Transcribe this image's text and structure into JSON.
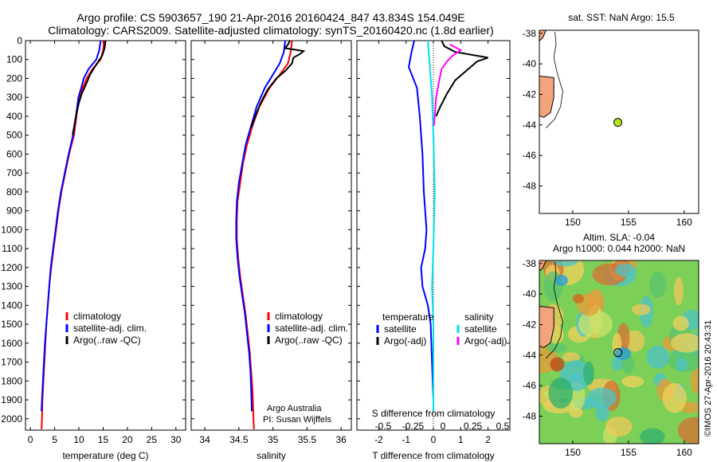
{
  "header": {
    "line1": "Argo profile: CS 5903657_190 21-Apr-2016 20160424_847 43.834S 154.049E",
    "line2": "Climatology: CARS2009. Satellite-adjusted climatology: synTS_20160420.nc (1.8d earlier)"
  },
  "colors": {
    "climatology": "#ff0000",
    "satellite": "#0000ff",
    "argo": "#000000",
    "sat_salinity": "#00e0e8",
    "argo_salinity": "#ff00ff",
    "land": "#f3a47a",
    "marker": "#b5e61d"
  },
  "credits": {
    "watermark": "©IMOS 27-Apr-2016 20:43:31",
    "institution": "Argo Australia",
    "pi": "PI: Susan Wijffels"
  },
  "map_top": {
    "title": "sat. SST: NaN Argo: 15.5",
    "xticks": [
      150,
      155,
      160
    ],
    "yticks": [
      -38,
      -40,
      -42,
      -44,
      -46,
      -48
    ],
    "xlim": [
      147,
      161.3
    ],
    "ylim": [
      -49.8,
      -37.8
    ],
    "argo_position": {
      "lon": 154.049,
      "lat": -43.834
    }
  },
  "map_bottom": {
    "title1": "Altim. SLA: -0.04",
    "title2": "Argo h1000: 0.044 h2000: NaN",
    "xticks": [
      150,
      155,
      160
    ],
    "yticks": [
      -38,
      -40,
      -42,
      -44,
      -46,
      -48
    ],
    "xlim": [
      147,
      161.3
    ],
    "ylim": [
      -49.8,
      -37.8
    ],
    "argo_position": {
      "lon": 154.049,
      "lat": -43.834
    }
  },
  "chart_data": [
    {
      "type": "line",
      "panel": "temperature",
      "xlabel": "temperature (deg C)",
      "ylabel": "",
      "xlim": [
        -1,
        32
      ],
      "ylim": [
        2060,
        0
      ],
      "xticks": [
        0,
        5,
        10,
        15,
        20,
        25,
        30
      ],
      "yticks": [
        0,
        100,
        200,
        300,
        400,
        500,
        600,
        700,
        800,
        900,
        1000,
        1100,
        1200,
        1300,
        1400,
        1500,
        1600,
        1700,
        1800,
        1900,
        2000
      ],
      "legend": [
        "climatology",
        "satellite-adj. clim.",
        "Argo(..raw -QC)"
      ],
      "series": [
        {
          "name": "climatology",
          "color": "#ff0000",
          "points": [
            [
              15.2,
              0
            ],
            [
              15.0,
              50
            ],
            [
              14.5,
              100
            ],
            [
              12.8,
              150
            ],
            [
              11.6,
              200
            ],
            [
              10.8,
              250
            ],
            [
              10.0,
              300
            ],
            [
              9.5,
              400
            ],
            [
              9.0,
              500
            ],
            [
              8.0,
              600
            ],
            [
              7.2,
              700
            ],
            [
              6.4,
              800
            ],
            [
              5.8,
              900
            ],
            [
              5.3,
              1000
            ],
            [
              4.8,
              1100
            ],
            [
              4.3,
              1200
            ],
            [
              3.9,
              1300
            ],
            [
              3.6,
              1400
            ],
            [
              3.3,
              1500
            ],
            [
              3.1,
              1600
            ],
            [
              2.9,
              1700
            ],
            [
              2.7,
              1800
            ],
            [
              2.5,
              1900
            ],
            [
              2.4,
              2000
            ],
            [
              2.3,
              2055
            ]
          ]
        },
        {
          "name": "satellite-adj. clim.",
          "color": "#0000ff",
          "points": [
            [
              14.5,
              0
            ],
            [
              14.2,
              50
            ],
            [
              13.6,
              100
            ],
            [
              12.0,
              150
            ],
            [
              11.0,
              200
            ],
            [
              10.5,
              250
            ],
            [
              9.9,
              300
            ],
            [
              9.4,
              400
            ],
            [
              8.8,
              500
            ],
            [
              7.9,
              600
            ],
            [
              7.1,
              700
            ],
            [
              6.3,
              800
            ],
            [
              5.7,
              900
            ],
            [
              5.2,
              1000
            ],
            [
              4.7,
              1100
            ],
            [
              4.2,
              1200
            ],
            [
              3.9,
              1300
            ],
            [
              3.6,
              1400
            ],
            [
              3.3,
              1500
            ],
            [
              3.0,
              1600
            ],
            [
              2.8,
              1700
            ],
            [
              2.6,
              1800
            ],
            [
              2.4,
              1900
            ],
            [
              2.3,
              1960
            ]
          ]
        },
        {
          "name": "Argo(..raw -QC)",
          "color": "#000000",
          "points": [
            [
              15.5,
              0
            ],
            [
              15.3,
              40
            ],
            [
              14.8,
              80
            ],
            [
              13.5,
              130
            ],
            [
              12.3,
              180
            ],
            [
              11.5,
              230
            ],
            [
              10.6,
              280
            ],
            [
              10.0,
              330
            ],
            [
              9.4,
              400
            ],
            [
              8.7,
              500
            ]
          ]
        }
      ]
    },
    {
      "type": "line",
      "panel": "salinity",
      "xlabel": "salinity",
      "ylabel": "",
      "xlim": [
        33.8,
        36.15
      ],
      "ylim": [
        2060,
        0
      ],
      "xticks": [
        34,
        34.5,
        35,
        35.5,
        36
      ],
      "legend": [
        "climatology",
        "satellite-adj. clim.",
        "Argo(..raw -QC)"
      ],
      "series": [
        {
          "name": "climatology",
          "color": "#ff0000",
          "points": [
            [
              35.28,
              0
            ],
            [
              35.26,
              60
            ],
            [
              35.22,
              120
            ],
            [
              35.1,
              180
            ],
            [
              34.95,
              250
            ],
            [
              34.8,
              350
            ],
            [
              34.7,
              450
            ],
            [
              34.62,
              550
            ],
            [
              34.56,
              650
            ],
            [
              34.52,
              750
            ],
            [
              34.48,
              850
            ],
            [
              34.47,
              950
            ],
            [
              34.47,
              1050
            ],
            [
              34.49,
              1150
            ],
            [
              34.52,
              1250
            ],
            [
              34.56,
              1350
            ],
            [
              34.6,
              1450
            ],
            [
              34.63,
              1550
            ],
            [
              34.66,
              1650
            ],
            [
              34.68,
              1750
            ],
            [
              34.7,
              1850
            ],
            [
              34.71,
              1950
            ],
            [
              34.72,
              2055
            ]
          ]
        },
        {
          "name": "satellite-adj. clim.",
          "color": "#0000ff",
          "points": [
            [
              35.18,
              0
            ],
            [
              35.16,
              60
            ],
            [
              35.1,
              120
            ],
            [
              35.0,
              180
            ],
            [
              34.88,
              250
            ],
            [
              34.76,
              350
            ],
            [
              34.68,
              450
            ],
            [
              34.6,
              550
            ],
            [
              34.55,
              650
            ],
            [
              34.5,
              750
            ],
            [
              34.47,
              850
            ],
            [
              34.46,
              950
            ],
            [
              34.46,
              1050
            ],
            [
              34.48,
              1150
            ],
            [
              34.51,
              1250
            ],
            [
              34.55,
              1350
            ],
            [
              34.59,
              1450
            ],
            [
              34.62,
              1550
            ],
            [
              34.65,
              1650
            ],
            [
              34.67,
              1750
            ],
            [
              34.68,
              1850
            ],
            [
              34.69,
              1960
            ]
          ]
        },
        {
          "name": "Argo(..raw -QC)",
          "color": "#000000",
          "points": [
            [
              35.25,
              0
            ],
            [
              35.22,
              20
            ],
            [
              35.18,
              40
            ],
            [
              35.45,
              55
            ],
            [
              35.4,
              70
            ],
            [
              35.3,
              90
            ],
            [
              35.28,
              120
            ],
            [
              35.18,
              160
            ],
            [
              35.05,
              200
            ],
            [
              34.92,
              260
            ],
            [
              34.82,
              330
            ],
            [
              34.74,
              400
            ],
            [
              34.68,
              460
            ]
          ]
        }
      ]
    },
    {
      "type": "line",
      "panel": "difference",
      "xlabel": "T difference from climatology",
      "x2label": "S difference from climatology",
      "ylabel": "",
      "xlim": [
        -2.8,
        2.8
      ],
      "ylim": [
        2060,
        0
      ],
      "xticks": [
        -2,
        -1,
        0,
        1,
        2
      ],
      "x2ticks_labels": [
        "-0.5",
        "-0.25",
        "0",
        "0.25",
        "0.5"
      ],
      "legend_headers": [
        "temperature",
        "salinity"
      ],
      "legend": [
        "satellite",
        "Argo(-adj)",
        "satellite",
        "Argo(-adj)"
      ],
      "series": [
        {
          "name": "satellite",
          "color": "#0000ff",
          "points": [
            [
              -0.7,
              0
            ],
            [
              -0.8,
              60
            ],
            [
              -0.9,
              140
            ],
            [
              -0.6,
              250
            ],
            [
              -0.5,
              400
            ],
            [
              -0.4,
              600
            ],
            [
              -0.35,
              800
            ],
            [
              -0.25,
              1000
            ],
            [
              -0.3,
              1100
            ],
            [
              -0.45,
              1200
            ],
            [
              -0.4,
              1300
            ],
            [
              -0.2,
              1400
            ],
            [
              -0.1,
              1500
            ],
            [
              -0.05,
              1700
            ],
            [
              0,
              1900
            ],
            [
              0,
              1960
            ]
          ]
        },
        {
          "name": "Argo(-adj)",
          "color": "#000000",
          "points": [
            [
              0.3,
              0
            ],
            [
              0.4,
              30
            ],
            [
              0.8,
              60
            ],
            [
              2.0,
              90
            ],
            [
              1.6,
              110
            ],
            [
              1.2,
              160
            ],
            [
              0.8,
              210
            ],
            [
              0.5,
              280
            ],
            [
              0.25,
              350
            ],
            [
              0.1,
              400
            ]
          ]
        },
        {
          "name": "satellite",
          "color": "#00e0e8",
          "points": [
            [
              -0.2,
              0
            ],
            [
              -0.15,
              100
            ],
            [
              -0.05,
              300
            ],
            [
              0.0,
              500
            ],
            [
              0.05,
              800
            ],
            [
              0.0,
              1100
            ],
            [
              -0.05,
              1300
            ],
            [
              0.0,
              1500
            ],
            [
              0.0,
              1960
            ]
          ]
        },
        {
          "name": "Argo(-adj)",
          "color": "#ff00ff",
          "points": [
            [
              0.6,
              20
            ],
            [
              1.0,
              50
            ],
            [
              0.7,
              80
            ],
            [
              0.5,
              110
            ],
            [
              0.3,
              150
            ],
            [
              0.2,
              220
            ],
            [
              0.1,
              300
            ],
            [
              0.05,
              400
            ],
            [
              0.02,
              450
            ]
          ]
        }
      ]
    }
  ]
}
